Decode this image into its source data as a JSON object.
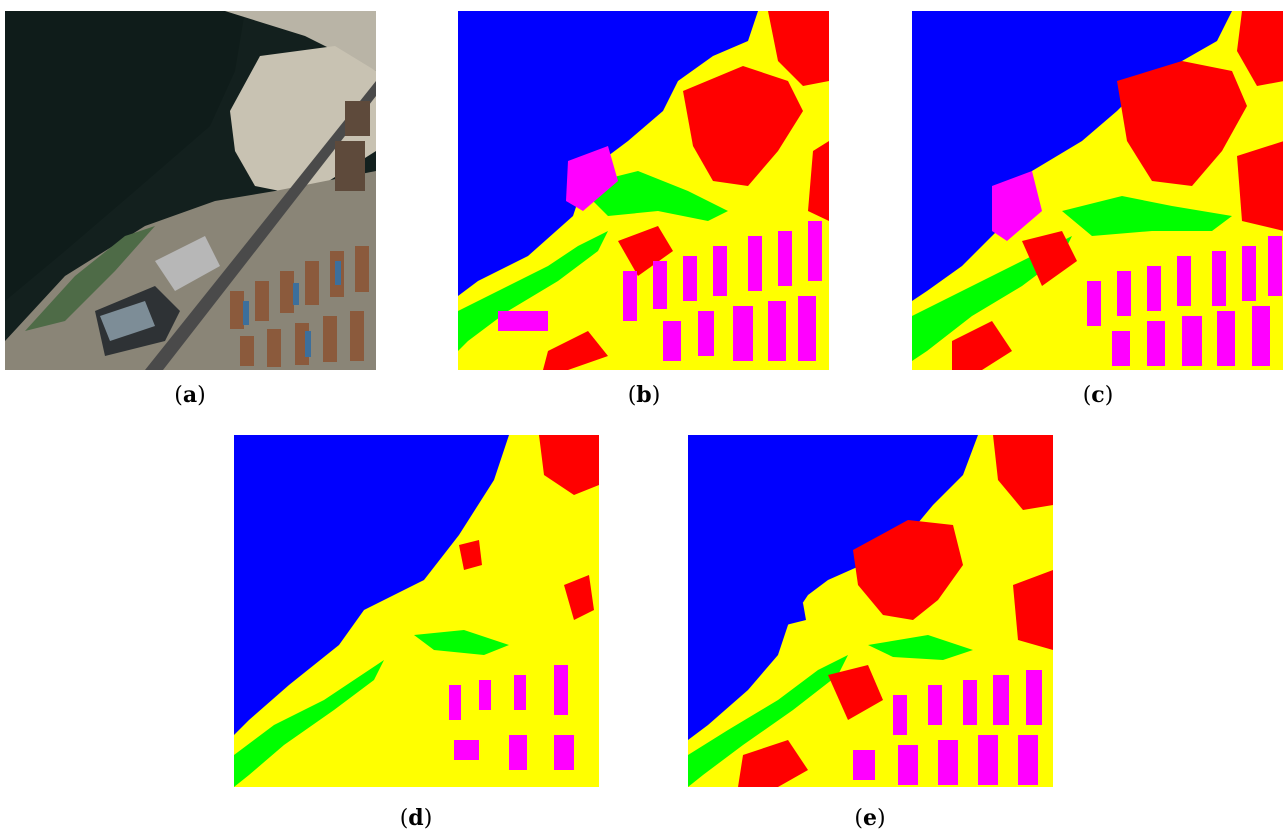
{
  "captions": {
    "a": {
      "open": "(",
      "letter": "a",
      "close": ")"
    },
    "b": {
      "open": "(",
      "letter": "b",
      "close": ")"
    },
    "c": {
      "open": "(",
      "letter": "c",
      "close": ")"
    },
    "d": {
      "open": "(",
      "letter": "d",
      "close": ")"
    },
    "e": {
      "open": "(",
      "letter": "e",
      "close": ")"
    }
  },
  "class_colors": {
    "water": "#0000ff",
    "bare_land": "#ffff00",
    "building": "#ff00ff",
    "vegetation": "#00ff00",
    "other": "#ff0000"
  }
}
